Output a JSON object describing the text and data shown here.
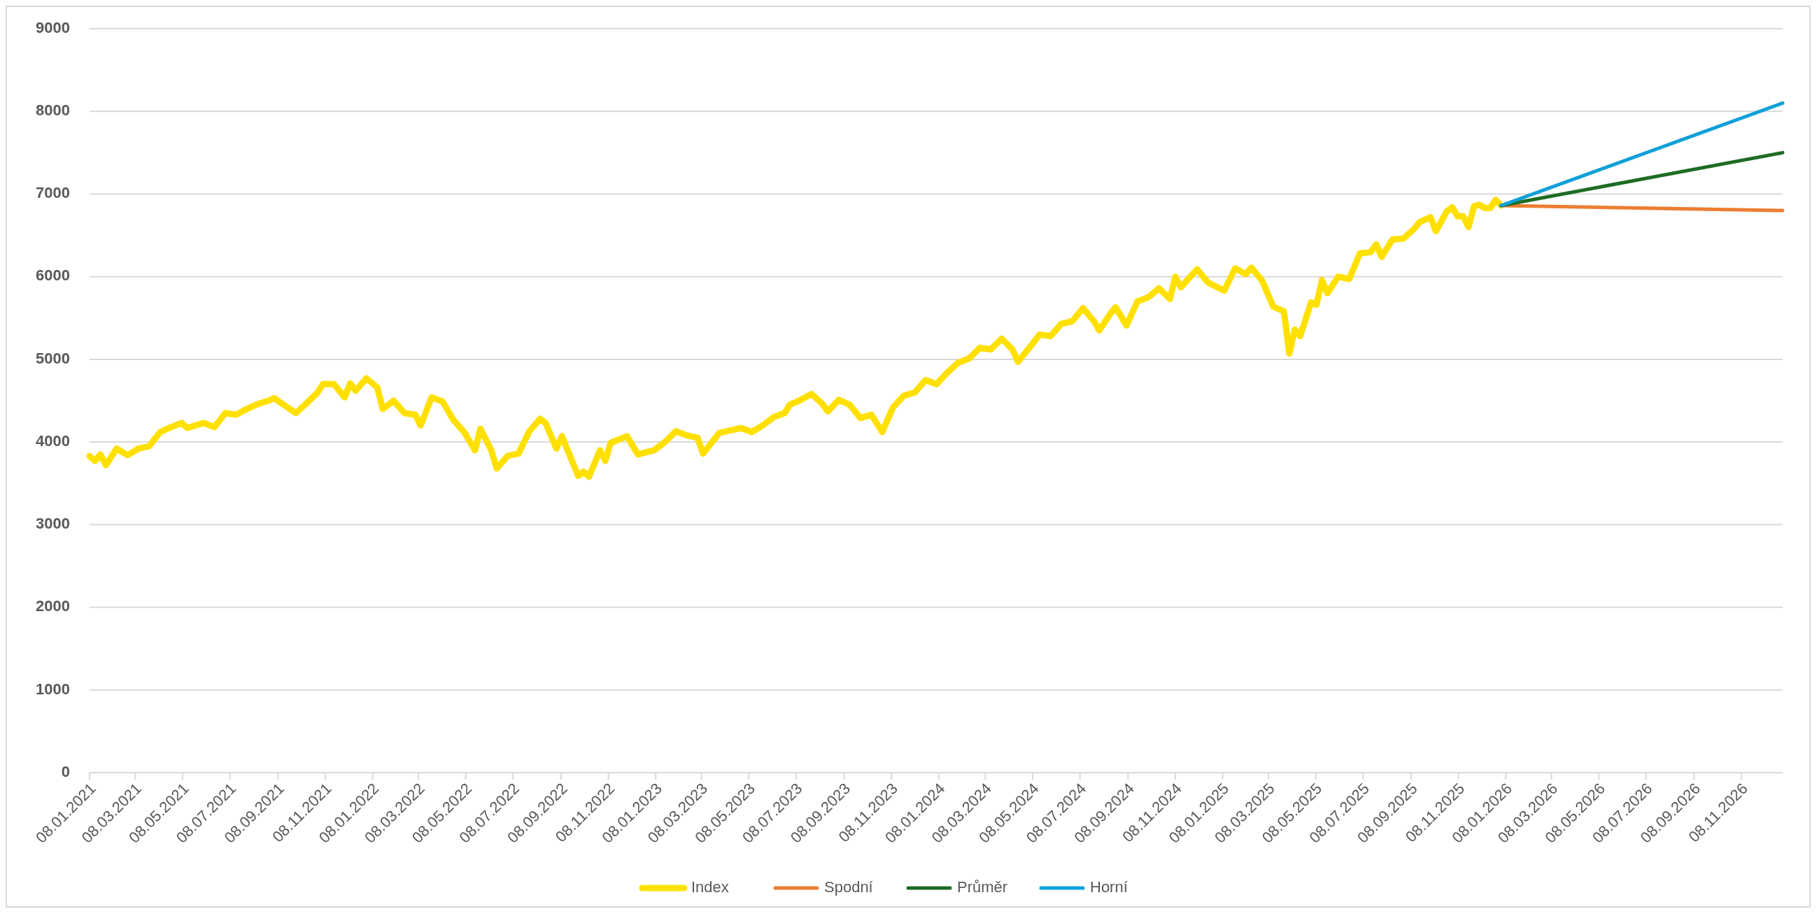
{
  "chart_data": {
    "type": "line",
    "legend": "bottom",
    "grid": "y",
    "marker": "none",
    "line_style": "solid",
    "xlim": [
      "2021-01-08",
      "2026-12-31"
    ],
    "ylim": [
      0,
      9000
    ],
    "yticks": [
      0,
      1000,
      2000,
      3000,
      4000,
      5000,
      6000,
      7000,
      8000,
      9000
    ],
    "xticks": [
      {
        "value": "2021-01-08",
        "label": "08.01.2021"
      },
      {
        "value": "2021-03-08",
        "label": "08.03.2021"
      },
      {
        "value": "2021-05-08",
        "label": "08.05.2021"
      },
      {
        "value": "2021-07-08",
        "label": "08.07.2021"
      },
      {
        "value": "2021-09-08",
        "label": "08.09.2021"
      },
      {
        "value": "2021-11-08",
        "label": "08.11.2021"
      },
      {
        "value": "2022-01-08",
        "label": "08.01.2022"
      },
      {
        "value": "2022-03-08",
        "label": "08.03.2022"
      },
      {
        "value": "2022-05-08",
        "label": "08.05.2022"
      },
      {
        "value": "2022-07-08",
        "label": "08.07.2022"
      },
      {
        "value": "2022-09-08",
        "label": "08.09.2022"
      },
      {
        "value": "2022-11-08",
        "label": "08.11.2022"
      },
      {
        "value": "2023-01-08",
        "label": "08.01.2023"
      },
      {
        "value": "2023-03-08",
        "label": "08.03.2023"
      },
      {
        "value": "2023-05-08",
        "label": "08.05.2023"
      },
      {
        "value": "2023-07-08",
        "label": "08.07.2023"
      },
      {
        "value": "2023-09-08",
        "label": "08.09.2023"
      },
      {
        "value": "2023-11-08",
        "label": "08.11.2023"
      },
      {
        "value": "2024-01-08",
        "label": "08.01.2024"
      },
      {
        "value": "2024-03-08",
        "label": "08.03.2024"
      },
      {
        "value": "2024-05-08",
        "label": "08.05.2024"
      },
      {
        "value": "2024-07-08",
        "label": "08.07.2024"
      },
      {
        "value": "2024-09-08",
        "label": "08.09.2024"
      },
      {
        "value": "2024-11-08",
        "label": "08.11.2024"
      },
      {
        "value": "2025-01-08",
        "label": "08.01.2025"
      },
      {
        "value": "2025-03-08",
        "label": "08.03.2025"
      },
      {
        "value": "2025-05-08",
        "label": "08.05.2025"
      },
      {
        "value": "2025-07-08",
        "label": "08.07.2025"
      },
      {
        "value": "2025-09-08",
        "label": "08.09.2025"
      },
      {
        "value": "2025-11-08",
        "label": "08.11.2025"
      },
      {
        "value": "2026-01-08",
        "label": "08.01.2026"
      },
      {
        "value": "2026-03-08",
        "label": "08.03.2026"
      },
      {
        "value": "2026-05-08",
        "label": "08.05.2026"
      },
      {
        "value": "2026-07-08",
        "label": "08.07.2026"
      },
      {
        "value": "2026-09-08",
        "label": "08.09.2026"
      },
      {
        "value": "2026-11-08",
        "label": "08.11.2026"
      }
    ],
    "series": [
      {
        "name": "Index",
        "color": "#ffe000",
        "x": [
          "2021-01-08",
          "2021-01-15",
          "2021-01-22",
          "2021-01-29",
          "2021-02-12",
          "2021-02-26",
          "2021-03-12",
          "2021-03-26",
          "2021-04-09",
          "2021-04-23",
          "2021-05-07",
          "2021-05-14",
          "2021-05-28",
          "2021-06-04",
          "2021-06-18",
          "2021-07-02",
          "2021-07-16",
          "2021-07-30",
          "2021-08-13",
          "2021-08-27",
          "2021-09-03",
          "2021-09-17",
          "2021-10-01",
          "2021-10-15",
          "2021-10-29",
          "2021-11-05",
          "2021-11-19",
          "2021-12-03",
          "2021-12-10",
          "2021-12-17",
          "2021-12-31",
          "2022-01-14",
          "2022-01-21",
          "2022-02-04",
          "2022-02-18",
          "2022-03-04",
          "2022-03-11",
          "2022-03-25",
          "2022-04-08",
          "2022-04-22",
          "2022-05-06",
          "2022-05-20",
          "2022-05-27",
          "2022-06-10",
          "2022-06-17",
          "2022-07-01",
          "2022-07-15",
          "2022-07-29",
          "2022-08-12",
          "2022-08-19",
          "2022-09-02",
          "2022-09-09",
          "2022-09-30",
          "2022-10-07",
          "2022-10-14",
          "2022-10-28",
          "2022-11-04",
          "2022-11-11",
          "2022-12-02",
          "2022-12-16",
          "2023-01-06",
          "2023-01-20",
          "2023-02-03",
          "2023-02-17",
          "2023-03-03",
          "2023-03-10",
          "2023-03-31",
          "2023-04-14",
          "2023-04-28",
          "2023-05-12",
          "2023-05-26",
          "2023-06-09",
          "2023-06-23",
          "2023-06-30",
          "2023-07-14",
          "2023-07-28",
          "2023-08-11",
          "2023-08-18",
          "2023-09-01",
          "2023-09-15",
          "2023-09-29",
          "2023-10-13",
          "2023-10-27",
          "2023-11-10",
          "2023-11-24",
          "2023-12-08",
          "2023-12-22",
          "2024-01-05",
          "2024-01-19",
          "2024-02-02",
          "2024-02-16",
          "2024-03-01",
          "2024-03-15",
          "2024-03-29",
          "2024-04-12",
          "2024-04-19",
          "2024-05-03",
          "2024-05-17",
          "2024-05-31",
          "2024-06-14",
          "2024-06-28",
          "2024-07-12",
          "2024-07-26",
          "2024-08-02",
          "2024-08-16",
          "2024-08-23",
          "2024-09-06",
          "2024-09-20",
          "2024-10-04",
          "2024-10-18",
          "2024-11-01",
          "2024-11-08",
          "2024-11-15",
          "2024-12-06",
          "2024-12-20",
          "2025-01-10",
          "2025-01-24",
          "2025-02-07",
          "2025-02-14",
          "2025-02-28",
          "2025-03-14",
          "2025-03-28",
          "2025-04-04",
          "2025-04-11",
          "2025-04-18",
          "2025-05-02",
          "2025-05-09",
          "2025-05-16",
          "2025-05-23",
          "2025-06-06",
          "2025-06-20",
          "2025-07-04",
          "2025-07-18",
          "2025-07-25",
          "2025-08-01",
          "2025-08-15",
          "2025-08-29",
          "2025-09-12",
          "2025-09-19",
          "2025-10-03",
          "2025-10-10",
          "2025-10-24",
          "2025-10-31",
          "2025-11-07",
          "2025-11-14",
          "2025-11-21",
          "2025-11-28",
          "2025-12-05",
          "2025-12-12",
          "2025-12-19",
          "2025-12-26",
          "2026-01-02"
        ],
        "values": [
          3830,
          3770,
          3850,
          3720,
          3920,
          3840,
          3920,
          3950,
          4120,
          4180,
          4230,
          4170,
          4210,
          4230,
          4180,
          4350,
          4330,
          4400,
          4460,
          4500,
          4530,
          4440,
          4350,
          4470,
          4600,
          4700,
          4700,
          4540,
          4710,
          4620,
          4770,
          4660,
          4400,
          4500,
          4350,
          4330,
          4200,
          4540,
          4490,
          4270,
          4120,
          3900,
          4160,
          3900,
          3680,
          3830,
          3860,
          4130,
          4280,
          4230,
          3920,
          4070,
          3590,
          3640,
          3580,
          3900,
          3770,
          3990,
          4070,
          3850,
          3900,
          4000,
          4130,
          4080,
          4050,
          3860,
          4110,
          4140,
          4170,
          4120,
          4200,
          4300,
          4350,
          4450,
          4510,
          4580,
          4460,
          4370,
          4510,
          4450,
          4290,
          4330,
          4120,
          4420,
          4560,
          4600,
          4750,
          4700,
          4840,
          4960,
          5010,
          5140,
          5120,
          5250,
          5120,
          4970,
          5130,
          5300,
          5280,
          5430,
          5460,
          5620,
          5460,
          5350,
          5550,
          5630,
          5410,
          5700,
          5750,
          5860,
          5730,
          6000,
          5870,
          6090,
          5930,
          5830,
          6100,
          6030,
          6110,
          5950,
          5640,
          5580,
          5070,
          5360,
          5280,
          5690,
          5660,
          5960,
          5800,
          6000,
          5970,
          6280,
          6300,
          6390,
          6240,
          6450,
          6460,
          6580,
          6660,
          6720,
          6550,
          6790,
          6840,
          6730,
          6730,
          6600,
          6850,
          6870,
          6830,
          6830,
          6930,
          6860
        ]
      },
      {
        "name": "Spodní",
        "color": "#ed7d31",
        "x": [
          "2026-01-02",
          "2026-12-31"
        ],
        "values": [
          6860,
          6800
        ]
      },
      {
        "name": "Průměr",
        "color": "#1e6b24",
        "x": [
          "2026-01-02",
          "2026-12-31"
        ],
        "values": [
          6860,
          7500
        ]
      },
      {
        "name": "Horní",
        "color": "#0fa0d8",
        "x": [
          "2026-01-02",
          "2026-12-31"
        ],
        "values": [
          6860,
          8100
        ]
      }
    ]
  }
}
